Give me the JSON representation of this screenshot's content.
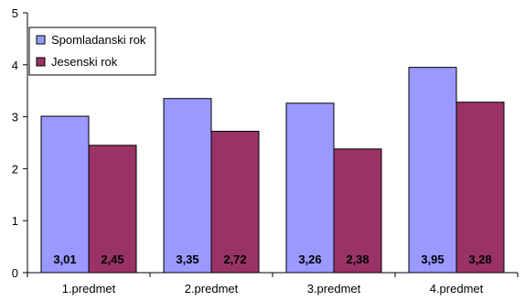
{
  "chart_data": {
    "type": "bar",
    "categories": [
      "1.predmet",
      "2.predmet",
      "3.predmet",
      "4.predmet"
    ],
    "series": [
      {
        "name": "Spomladanski rok",
        "values": [
          3.01,
          3.35,
          3.26,
          3.95
        ],
        "labels": [
          "3,01",
          "3,35",
          "3,26",
          "3,95"
        ],
        "color": "#9999ff"
      },
      {
        "name": "Jesenski rok",
        "values": [
          2.45,
          2.72,
          2.38,
          3.28
        ],
        "labels": [
          "2,45",
          "2,72",
          "2,38",
          "3,28"
        ],
        "color": "#993366"
      }
    ],
    "yticks": [
      "0",
      "1",
      "2",
      "3",
      "4",
      "5"
    ],
    "ylim": [
      0,
      5
    ],
    "grid": false,
    "legend_position": "top-left"
  }
}
